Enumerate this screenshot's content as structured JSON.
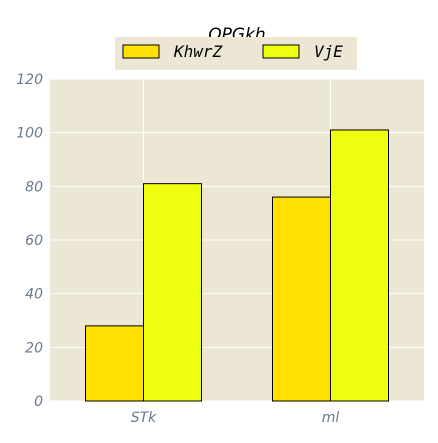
{
  "chart_data": {
    "type": "bar",
    "title": "OPGkh",
    "xlabel": "",
    "ylabel": "",
    "categories": [
      "STk",
      "ml"
    ],
    "series": [
      {
        "name": "KhwrZ",
        "values": [
          28,
          76
        ],
        "color": "#ffe000"
      },
      {
        "name": "VjE",
        "values": [
          81,
          101
        ],
        "color": "#eeff10"
      }
    ],
    "ylim": [
      0,
      120
    ],
    "yticks": [
      "0",
      "20",
      "40",
      "60",
      "80",
      "100",
      "120"
    ],
    "ytick_values": [
      0,
      20,
      40,
      60,
      80,
      100,
      120
    ],
    "grid": true,
    "legend_position": "top-center",
    "plot_background": "#ece6d4"
  }
}
